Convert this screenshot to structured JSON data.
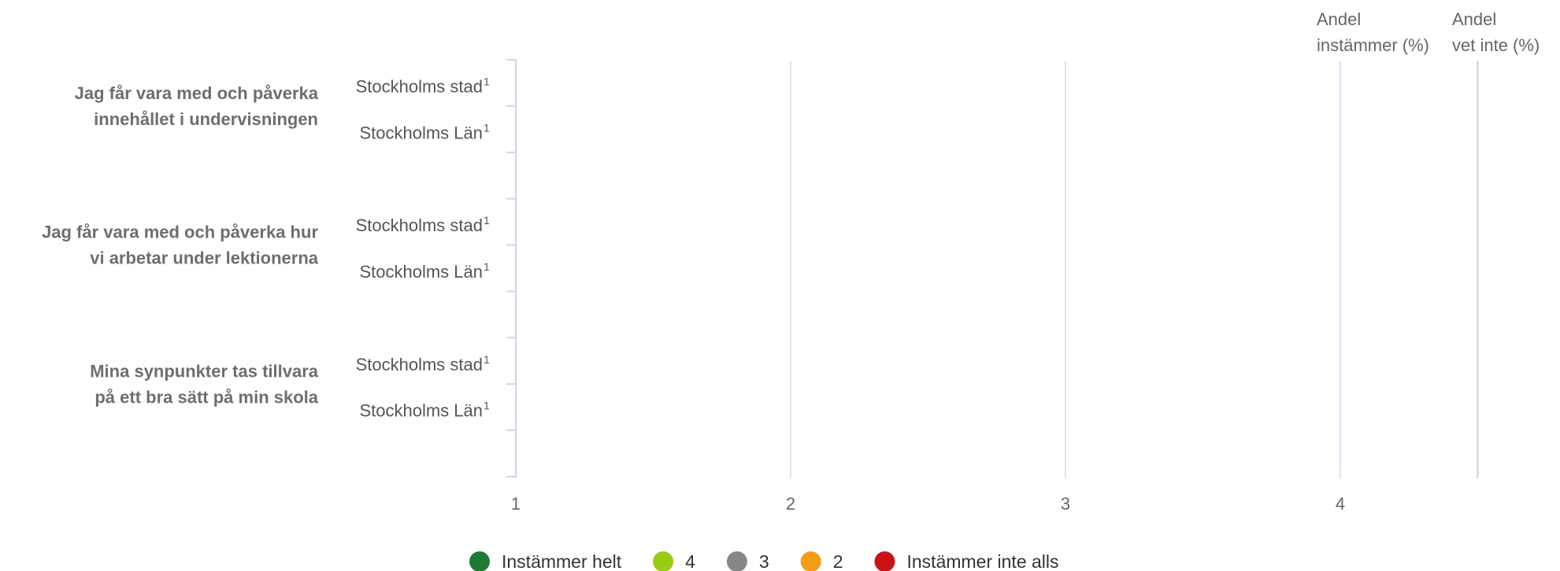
{
  "chart_data": {
    "type": "bar",
    "stacked": true,
    "orientation": "horizontal",
    "questions": [
      {
        "label_lines": [
          "Jag får vara med och påverka",
          "innehållet i undervisningen"
        ],
        "rows": [
          {
            "name": "Stockholms stad",
            "superscript": "1"
          },
          {
            "name": "Stockholms Län",
            "superscript": "1"
          }
        ]
      },
      {
        "label_lines": [
          "Jag får vara med och påverka hur",
          "vi arbetar under lektionerna"
        ],
        "rows": [
          {
            "name": "Stockholms stad",
            "superscript": "1"
          },
          {
            "name": "Stockholms Län",
            "superscript": "1"
          }
        ]
      },
      {
        "label_lines": [
          "Mina synpunkter tas tillvara",
          "på ett bra sätt på min skola"
        ],
        "rows": [
          {
            "name": "Stockholms stad",
            "superscript": "1"
          },
          {
            "name": "Stockholms Län",
            "superscript": "1"
          }
        ]
      }
    ],
    "x_ticks": [
      "1",
      "2",
      "3",
      "4"
    ],
    "xlim": [
      1,
      4.5
    ],
    "extra_columns": [
      {
        "lines": [
          "Andel",
          "instämmer (%)"
        ]
      },
      {
        "lines": [
          "Andel",
          "vet inte (%)"
        ]
      }
    ],
    "legend_position": "bottom",
    "legend": [
      {
        "label": "Instämmer helt",
        "color": "#1e7b34"
      },
      {
        "label": "4",
        "color": "#97cc12"
      },
      {
        "label": "3",
        "color": "#878787"
      },
      {
        "label": "2",
        "color": "#f59c16"
      },
      {
        "label": "Instämmer inte alls",
        "color": "#c81419"
      }
    ],
    "grid": true
  }
}
